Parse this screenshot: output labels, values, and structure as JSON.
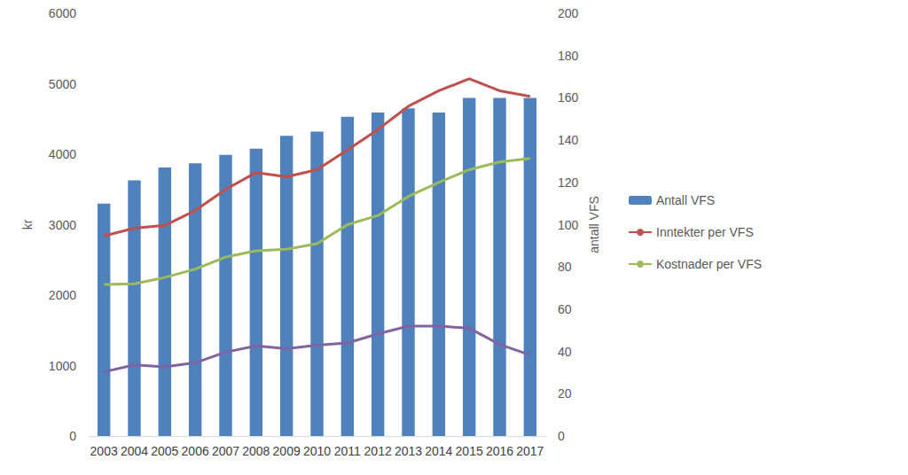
{
  "chart_data": {
    "type": "bar",
    "categories": [
      "2003",
      "2004",
      "2005",
      "2006",
      "2007",
      "2008",
      "2009",
      "2010",
      "2011",
      "2012",
      "2013",
      "2014",
      "2015",
      "2016",
      "2017"
    ],
    "series": [
      {
        "name": "Antall VFS",
        "type": "bar",
        "color": "#4f81bd",
        "axis": "y2",
        "values": [
          110,
          121,
          127,
          129,
          133,
          136,
          142,
          144,
          151,
          153,
          155,
          153,
          160,
          160,
          160
        ]
      },
      {
        "name": "Inntekter per VFS",
        "type": "line",
        "color": "#c0504d",
        "values": [
          2840,
          2950,
          2990,
          3200,
          3500,
          3740,
          3680,
          3780,
          4060,
          4350,
          4680,
          4900,
          5070,
          4900,
          4820
        ]
      },
      {
        "name": "Kostnader per VFS",
        "type": "line",
        "color": "#9bbb59",
        "values": [
          2150,
          2160,
          2250,
          2370,
          2540,
          2630,
          2650,
          2730,
          3000,
          3130,
          3400,
          3600,
          3780,
          3890,
          3940
        ]
      },
      {
        "type": "line",
        "color": "#8064a2",
        "values": [
          910,
          1010,
          980,
          1040,
          1190,
          1280,
          1240,
          1290,
          1320,
          1450,
          1560,
          1560,
          1530,
          1300,
          1150
        ]
      }
    ],
    "ylabel": "kr",
    "y2label": "antall VFS",
    "ylim": [
      0,
      6000
    ],
    "yticks": [
      0,
      1000,
      2000,
      3000,
      4000,
      5000,
      6000
    ],
    "y2lim": [
      0,
      200
    ],
    "y2ticks": [
      0,
      20,
      40,
      60,
      80,
      100,
      120,
      140,
      160,
      180,
      200
    ],
    "grid": false,
    "legend": "right"
  }
}
